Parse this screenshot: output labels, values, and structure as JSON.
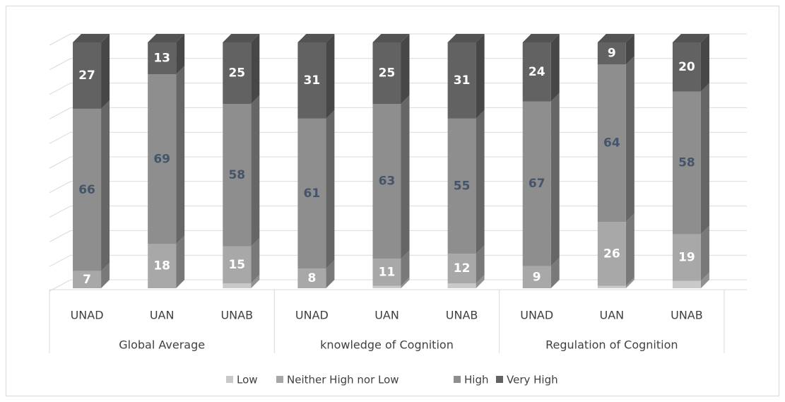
{
  "chart_data": {
    "type": "stacked_bar_3d",
    "groups": [
      "Global Average",
      "knowledge of Cognition",
      "Regulation of Cognition"
    ],
    "categories": [
      "UNAD",
      "UAN",
      "UNAB",
      "UNAD",
      "UAN",
      "UNAB",
      "UNAD",
      "UAN",
      "UNAB"
    ],
    "series": [
      {
        "name": "Low",
        "color": "#c9c9c9",
        "labels": false,
        "values": [
          0,
          0,
          2,
          0,
          1,
          2,
          0,
          1,
          3
        ]
      },
      {
        "name": "Neither High nor Low",
        "color": "#a8a8a8",
        "labels": true,
        "label_color": "#ffffff",
        "values": [
          7,
          18,
          15,
          8,
          11,
          12,
          9,
          26,
          19
        ]
      },
      {
        "name": "High",
        "color": "#8e8e8e",
        "labels": true,
        "label_color": "#44546a",
        "values": [
          66,
          69,
          58,
          61,
          63,
          55,
          67,
          64,
          58
        ]
      },
      {
        "name": "Very High",
        "color": "#626262",
        "labels": true,
        "label_color": "#ffffff",
        "values": [
          27,
          13,
          25,
          31,
          25,
          31,
          24,
          9,
          20
        ]
      }
    ],
    "ylim": [
      0,
      100
    ],
    "yticks": [
      0,
      10,
      20,
      30,
      40,
      50,
      60,
      70,
      80,
      90,
      100
    ],
    "grid": true
  }
}
